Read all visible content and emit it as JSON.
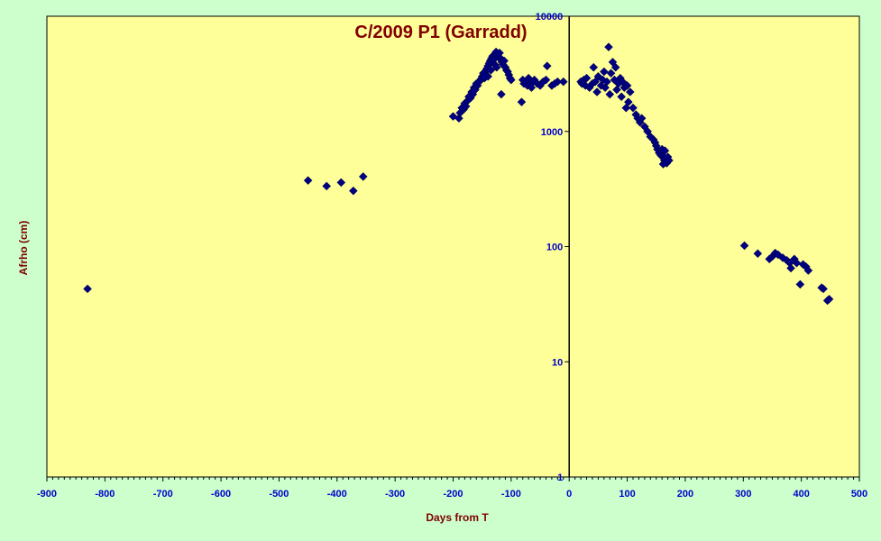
{
  "chart_data": {
    "type": "scatter",
    "title": "C/2009 P1 (Garradd)",
    "xlabel": "Days from T",
    "ylabel": "Afrho (cm)",
    "xlim": [
      -900,
      500
    ],
    "ylim": [
      1,
      10000
    ],
    "yscale": "log",
    "grid": false,
    "legend": "none",
    "x_ticks": [
      "-900",
      "-800",
      "-700",
      "-600",
      "-500",
      "-400",
      "-300",
      "-200",
      "-100",
      "0",
      "100",
      "200",
      "300",
      "400",
      "500"
    ],
    "y_ticks": [
      "1",
      "10",
      "100",
      "1000",
      "10000"
    ],
    "colors": {
      "page_background": "#ccffcc",
      "plot_background": "#ffff99",
      "marker": "#000080",
      "title": "#800000",
      "axis_title": "#800000",
      "tick_label": "#0000cc"
    },
    "series": [
      {
        "marker": "diamond",
        "points": [
          [
            -830,
            43
          ],
          [
            -450,
            375
          ],
          [
            -418,
            335
          ],
          [
            -393,
            360
          ],
          [
            -372,
            305
          ],
          [
            -355,
            405
          ],
          [
            -200,
            1350
          ],
          [
            -190,
            1300
          ],
          [
            -188,
            1450
          ],
          [
            -185,
            1600
          ],
          [
            -182,
            1550
          ],
          [
            -180,
            1750
          ],
          [
            -178,
            1650
          ],
          [
            -175,
            1850
          ],
          [
            -173,
            2000
          ],
          [
            -170,
            1950
          ],
          [
            -168,
            2200
          ],
          [
            -166,
            2100
          ],
          [
            -164,
            2400
          ],
          [
            -162,
            2300
          ],
          [
            -160,
            2600
          ],
          [
            -158,
            2500
          ],
          [
            -155,
            2700
          ],
          [
            -152,
            2850
          ],
          [
            -150,
            3000
          ],
          [
            -148,
            3200
          ],
          [
            -145,
            3300
          ],
          [
            -142,
            3500
          ],
          [
            -140,
            3700
          ],
          [
            -138,
            3900
          ],
          [
            -136,
            4100
          ],
          [
            -134,
            4300
          ],
          [
            -132,
            4500
          ],
          [
            -130,
            4200
          ],
          [
            -128,
            4700
          ],
          [
            -126,
            4900
          ],
          [
            -124,
            4600
          ],
          [
            -122,
            4400
          ],
          [
            -120,
            4800
          ],
          [
            -118,
            4300
          ],
          [
            -116,
            4000
          ],
          [
            -114,
            3800
          ],
          [
            -112,
            4100
          ],
          [
            -110,
            3600
          ],
          [
            -108,
            3400
          ],
          [
            -106,
            3300
          ],
          [
            -104,
            3100
          ],
          [
            -102,
            2900
          ],
          [
            -100,
            2800
          ],
          [
            -117,
            2100
          ],
          [
            -140,
            3000
          ],
          [
            -135,
            3400
          ],
          [
            -128,
            3800
          ],
          [
            -146,
            2900
          ],
          [
            -125,
            3600
          ],
          [
            -82,
            1800
          ],
          [
            -80,
            2800
          ],
          [
            -78,
            2600
          ],
          [
            -75,
            2700
          ],
          [
            -72,
            2500
          ],
          [
            -70,
            2900
          ],
          [
            -68,
            2600
          ],
          [
            -65,
            2400
          ],
          [
            -62,
            2700
          ],
          [
            -60,
            2800
          ],
          [
            -55,
            2600
          ],
          [
            -50,
            2500
          ],
          [
            -45,
            2700
          ],
          [
            -40,
            2800
          ],
          [
            -38,
            3700
          ],
          [
            -30,
            2500
          ],
          [
            -25,
            2600
          ],
          [
            -20,
            2700
          ],
          [
            -10,
            2700
          ],
          [
            20,
            2700
          ],
          [
            22,
            2600
          ],
          [
            25,
            2800
          ],
          [
            28,
            2500
          ],
          [
            30,
            2900
          ],
          [
            35,
            2400
          ],
          [
            40,
            2600
          ],
          [
            42,
            3600
          ],
          [
            45,
            2700
          ],
          [
            48,
            2200
          ],
          [
            50,
            3000
          ],
          [
            55,
            2500
          ],
          [
            58,
            2800
          ],
          [
            60,
            3300
          ],
          [
            62,
            2400
          ],
          [
            65,
            2700
          ],
          [
            68,
            5400
          ],
          [
            70,
            2100
          ],
          [
            72,
            3200
          ],
          [
            75,
            4000
          ],
          [
            78,
            2800
          ],
          [
            80,
            3600
          ],
          [
            82,
            2300
          ],
          [
            85,
            2600
          ],
          [
            88,
            2900
          ],
          [
            90,
            2000
          ],
          [
            92,
            2700
          ],
          [
            95,
            2400
          ],
          [
            98,
            1600
          ],
          [
            100,
            2500
          ],
          [
            102,
            1800
          ],
          [
            105,
            2200
          ],
          [
            110,
            1600
          ],
          [
            115,
            1400
          ],
          [
            118,
            1300
          ],
          [
            122,
            1200
          ],
          [
            125,
            1300
          ],
          [
            130,
            1100
          ],
          [
            135,
            1000
          ],
          [
            140,
            900
          ],
          [
            145,
            850
          ],
          [
            148,
            800
          ],
          [
            150,
            750
          ],
          [
            152,
            700
          ],
          [
            155,
            650
          ],
          [
            158,
            620
          ],
          [
            160,
            700
          ],
          [
            162,
            600
          ],
          [
            164,
            560
          ],
          [
            166,
            580
          ],
          [
            168,
            530
          ],
          [
            170,
            600
          ],
          [
            172,
            560
          ],
          [
            165,
            680
          ],
          [
            162,
            520
          ]
        ]
      },
      {
        "marker": "diamond",
        "points": [
          [
            302,
            102
          ],
          [
            325,
            87
          ],
          [
            345,
            78
          ],
          [
            350,
            82
          ],
          [
            355,
            88
          ],
          [
            360,
            85
          ],
          [
            368,
            80
          ],
          [
            375,
            76
          ],
          [
            380,
            72
          ],
          [
            382,
            65
          ],
          [
            388,
            78
          ],
          [
            392,
            72
          ],
          [
            398,
            47
          ],
          [
            403,
            70
          ],
          [
            408,
            67
          ],
          [
            412,
            62
          ],
          [
            435,
            44
          ],
          [
            438,
            43
          ],
          [
            445,
            34
          ],
          [
            448,
            35
          ]
        ]
      }
    ]
  }
}
